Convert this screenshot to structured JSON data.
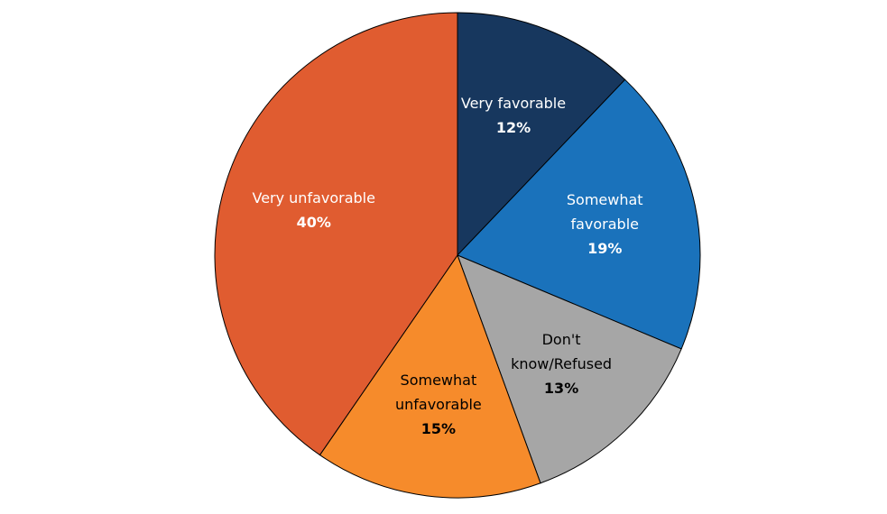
{
  "chart_data": {
    "type": "pie",
    "categories": [
      "Very favorable",
      "Somewhat favorable",
      "Don't know/Refused",
      "Somewhat unfavorable",
      "Very unfavorable"
    ],
    "values": [
      12,
      19,
      13,
      15,
      40
    ],
    "value_labels": [
      "12%",
      "19%",
      "13%",
      "15%",
      "40%"
    ],
    "colors": [
      "#17375e",
      "#1a72bb",
      "#a6a6a6",
      "#f68b2b",
      "#e05c30"
    ]
  }
}
